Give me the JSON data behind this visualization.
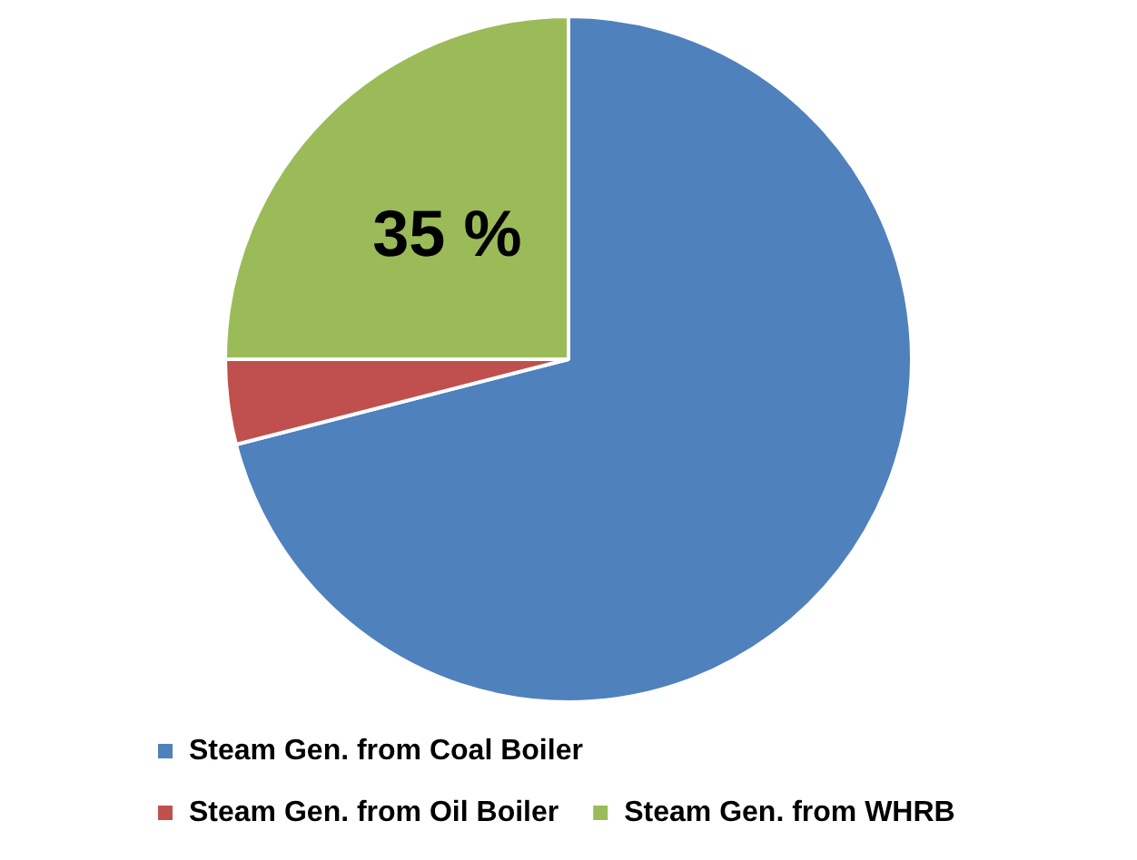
{
  "chart_data": {
    "type": "pie",
    "categories": [
      "Steam Gen. from Coal Boiler",
      "Steam Gen. from Oil Boiler",
      "Steam Gen. from WHRB"
    ],
    "values": [
      71,
      4,
      25
    ],
    "colors": [
      "#4f81bd",
      "#c0504d",
      "#9bbb59"
    ],
    "annotations": [
      {
        "text": "35 %",
        "x": "Steam Gen. from WHRB"
      }
    ],
    "legend": "bottom"
  }
}
